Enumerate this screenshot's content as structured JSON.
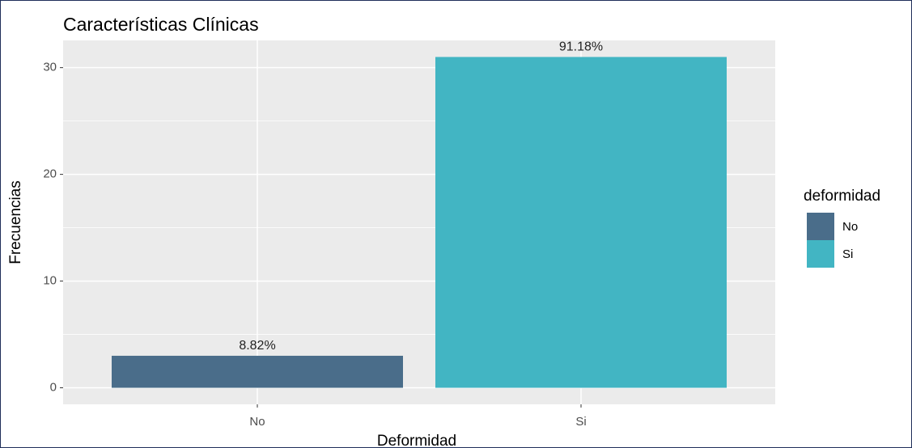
{
  "chart_data": {
    "type": "bar",
    "title": "Características Clínicas",
    "x_label": "Deformidad",
    "y_label": "Frecuencias",
    "categories": [
      "No",
      "Si"
    ],
    "values": [
      3,
      31
    ],
    "annotations": [
      "8.82%",
      "91.18%"
    ],
    "colors": [
      "#4a6d8a",
      "#42b5c3"
    ],
    "legend": {
      "title": "deformidad",
      "position": "right"
    },
    "ylim": [
      -1.55,
      32.55
    ],
    "yticks": [
      0,
      10,
      20,
      30
    ],
    "minor_yticks": [
      5,
      15,
      25
    ],
    "grid": true
  }
}
